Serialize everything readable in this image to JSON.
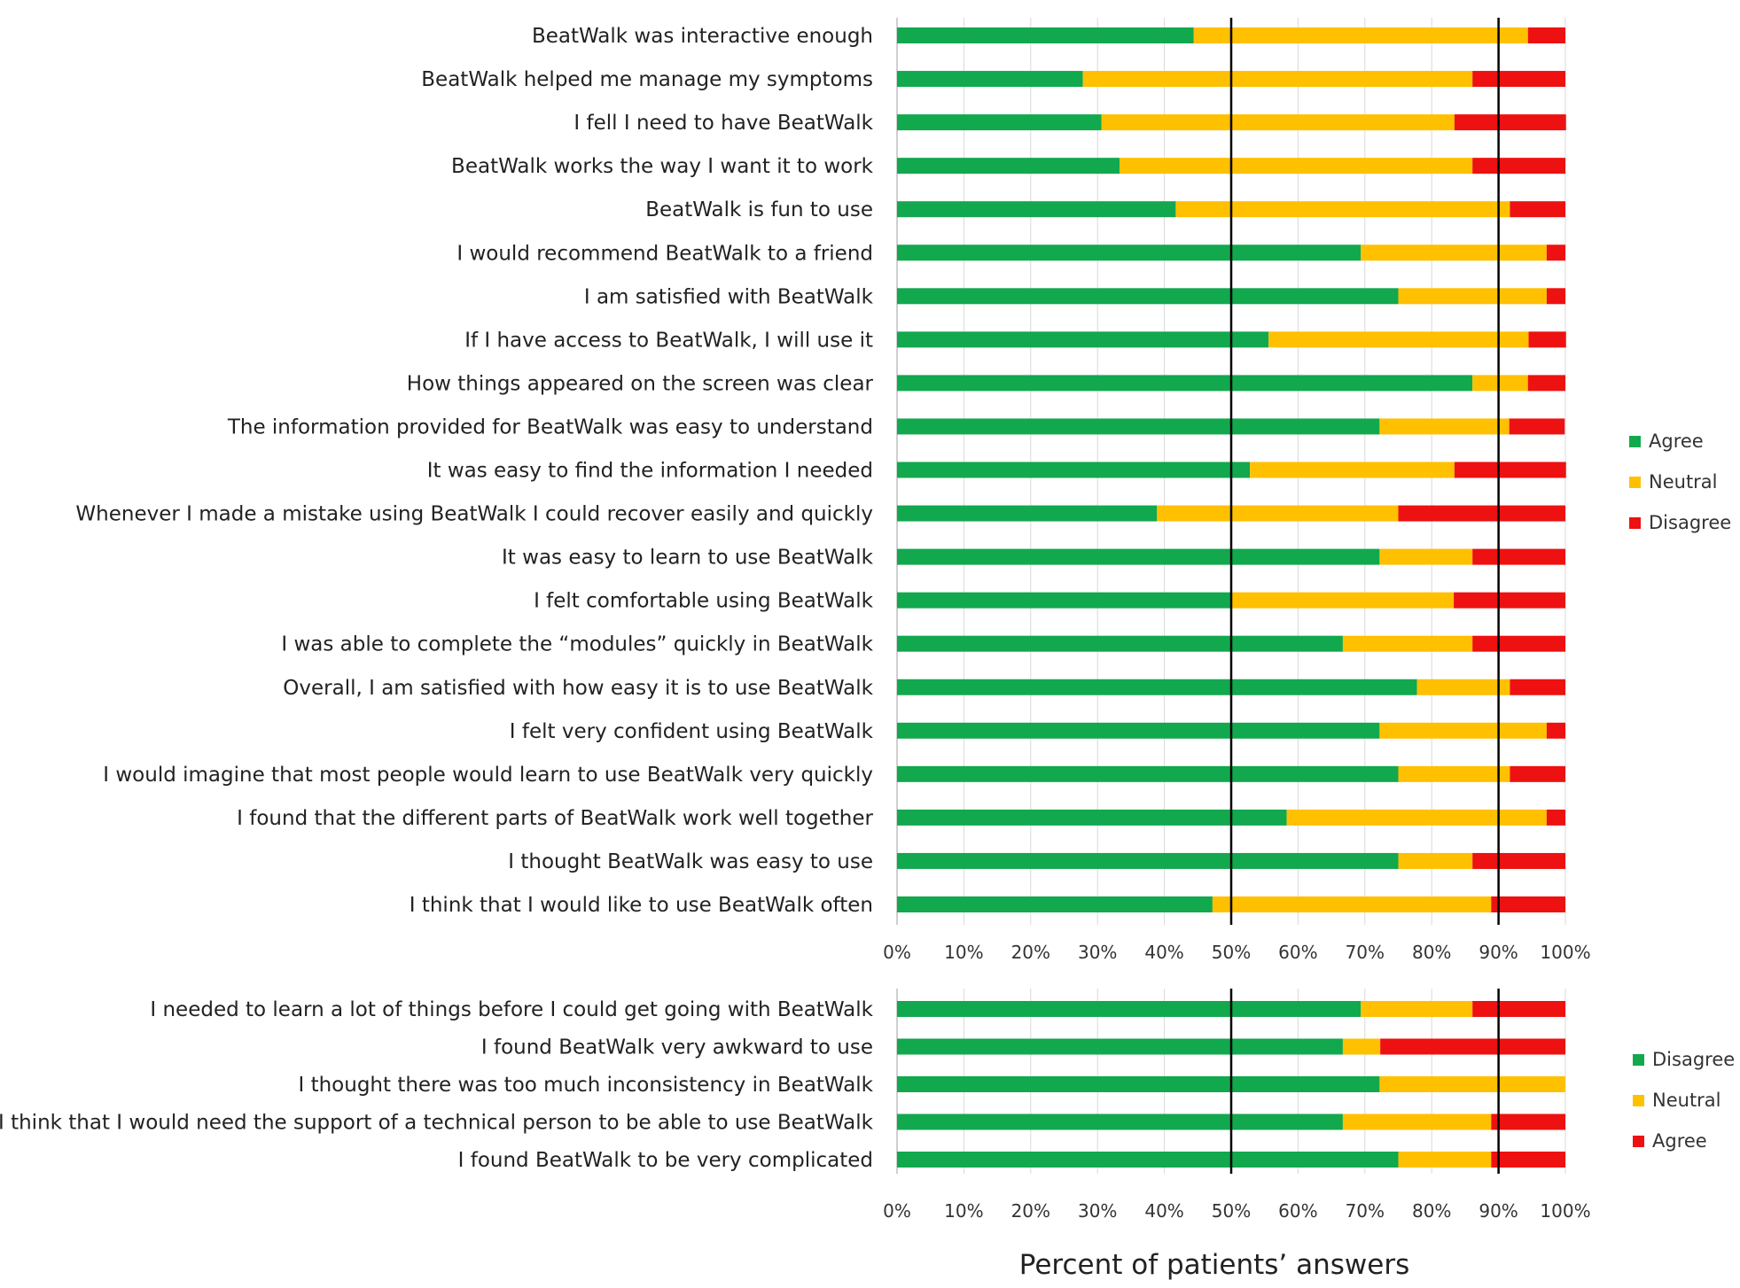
{
  "colors": {
    "green": "#12a84e",
    "yellow": "#ffc000",
    "red": "#ee1111"
  },
  "chart_data": [
    {
      "type": "bar",
      "orientation": "horizontal",
      "stacked": true,
      "title": "",
      "xlabel": "",
      "ylabel": "",
      "xlim": [
        0,
        100
      ],
      "xticks": [
        "0%",
        "10%",
        "20%",
        "30%",
        "40%",
        "50%",
        "60%",
        "70%",
        "80%",
        "90%",
        "100%"
      ],
      "reference_lines": [
        50,
        90
      ],
      "grid": true,
      "legend_position": "right",
      "categories": [
        "BeatWalk was interactive enough",
        "BeatWalk helped me manage my symptoms",
        "I fell I need to have BeatWalk",
        "BeatWalk works the way I want it to work",
        "BeatWalk is fun to use",
        "I would recommend BeatWalk to a friend",
        "I am satisfied with BeatWalk",
        "If I have access to BeatWalk, I will use it",
        "How things appeared on the screen was clear",
        "The information provided for BeatWalk was easy to understand",
        "It was easy to find the information I needed",
        "Whenever I made a mistake using BeatWalk I could recover easily and quickly",
        "It was easy to learn to use BeatWalk",
        "I felt comfortable using BeatWalk",
        "I was able to complete the “modules” quickly in BeatWalk",
        "Overall, I am satisfied with how easy it is to use BeatWalk",
        "I felt very confident using BeatWalk",
        "I would imagine that most people would learn to use BeatWalk very quickly",
        "I found that the different parts of BeatWalk work well together",
        "I thought BeatWalk was easy to use",
        "I think that I would like to use BeatWalk often"
      ],
      "series": [
        {
          "name": "Agree",
          "color": "#12a84e",
          "values": [
            44.4,
            27.8,
            30.6,
            33.3,
            41.7,
            69.4,
            75,
            55.6,
            86.1,
            72.2,
            52.8,
            38.9,
            72.2,
            50,
            66.7,
            77.8,
            72.2,
            75,
            58.3,
            75,
            47.2
          ]
        },
        {
          "name": "Neutral",
          "color": "#ffc000",
          "values": [
            50,
            58.3,
            52.8,
            52.8,
            50,
            27.8,
            22.2,
            38.9,
            8.3,
            19.4,
            30.6,
            36.1,
            13.9,
            33.3,
            19.4,
            13.9,
            25,
            16.7,
            38.9,
            11.1,
            41.7
          ]
        },
        {
          "name": "Disagree",
          "color": "#ee1111",
          "values": [
            5.6,
            13.9,
            16.7,
            13.9,
            8.3,
            2.8,
            2.8,
            5.6,
            5.6,
            8.3,
            16.7,
            25,
            13.9,
            16.7,
            13.9,
            8.3,
            2.8,
            8.3,
            2.8,
            13.9,
            11.1
          ]
        }
      ]
    },
    {
      "type": "bar",
      "orientation": "horizontal",
      "stacked": true,
      "title": "",
      "xlabel": "Percent of patients’ answers",
      "ylabel": "",
      "xlim": [
        0,
        100
      ],
      "xticks": [
        "0%",
        "10%",
        "20%",
        "30%",
        "40%",
        "50%",
        "60%",
        "70%",
        "80%",
        "90%",
        "100%"
      ],
      "reference_lines": [
        50,
        90
      ],
      "grid": true,
      "legend_position": "right",
      "categories": [
        "I needed to learn a lot of things before I could get going with BeatWalk",
        "I found BeatWalk very awkward to use",
        "I thought there was too much inconsistency in BeatWalk",
        "I think that I would need the support of a technical person to be able to use BeatWalk",
        "I found BeatWalk to be very complicated"
      ],
      "series": [
        {
          "name": "Disagree",
          "color": "#12a84e",
          "values": [
            69.4,
            66.7,
            72.2,
            66.7,
            75
          ]
        },
        {
          "name": "Neutral",
          "color": "#ffc000",
          "values": [
            16.7,
            5.6,
            27.8,
            22.2,
            13.9
          ]
        },
        {
          "name": "Agree",
          "color": "#ee1111",
          "values": [
            13.9,
            27.7,
            0,
            11.1,
            11.1
          ]
        }
      ]
    }
  ]
}
